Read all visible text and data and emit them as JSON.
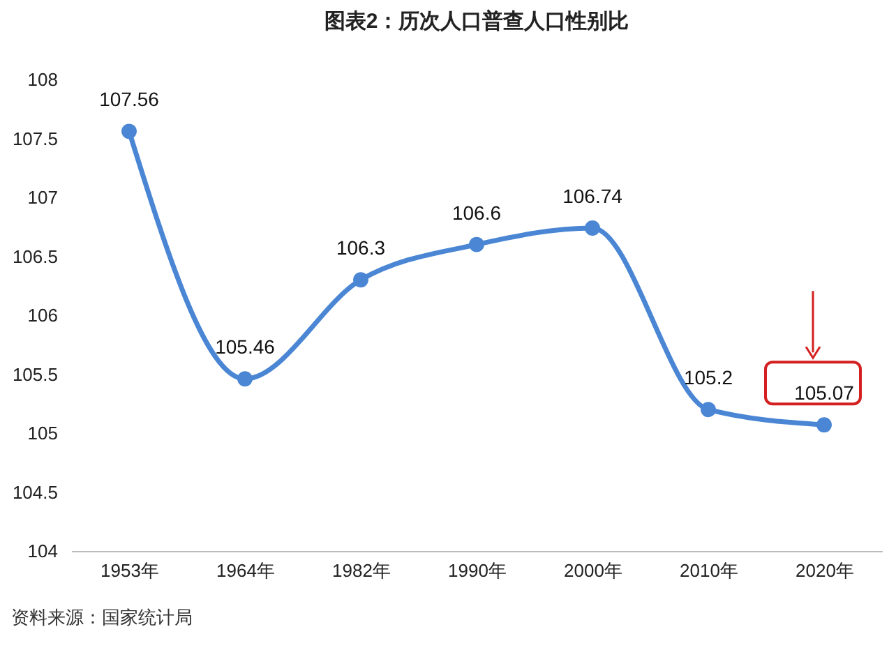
{
  "chart_data": {
    "type": "line",
    "title": "图表2：历次人口普查人口性别比",
    "categories": [
      "1953年",
      "1964年",
      "1982年",
      "1990年",
      "2000年",
      "2010年",
      "2020年"
    ],
    "series": [
      {
        "color": "#4a86d4",
        "values": [
          107.56,
          105.46,
          106.3,
          106.6,
          106.74,
          105.2,
          105.07
        ]
      }
    ],
    "ylim": [
      104,
      108
    ],
    "yticks": [
      104,
      104.5,
      105,
      105.5,
      106,
      106.5,
      107,
      107.5,
      108
    ],
    "grid": false,
    "legend": false,
    "marker": "circle",
    "line_style": "solid",
    "data_labels": true,
    "annotations": [
      "资料来源：国家统计局"
    ]
  }
}
